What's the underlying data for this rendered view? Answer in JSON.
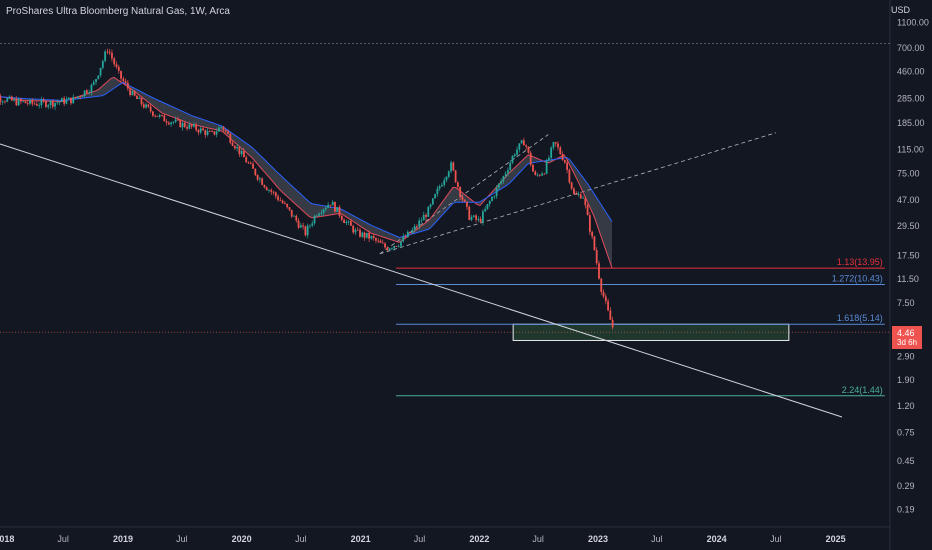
{
  "chart_title": "ProShares Ultra Bloomberg Natural Gas, 1W, Arca",
  "currency": "USD",
  "last_price": "4.46",
  "countdown": "3d 6h",
  "colors": {
    "background": "#131722",
    "up": "#26a69a",
    "down": "#ef5350",
    "ema_fast": "#e04b5a",
    "ema_slow": "#2962ff",
    "trendline": "#d1d4dc"
  },
  "chart_data": {
    "type": "candlestick",
    "y_scale": "log",
    "y_axis_ticks": [
      "1100.00",
      "700.00",
      "460.00",
      "285.00",
      "185.00",
      "115.00",
      "75.00",
      "47.00",
      "29.50",
      "17.50",
      "11.50",
      "7.50",
      "4.46",
      "2.90",
      "1.90",
      "1.20",
      "0.75",
      "0.45",
      "0.29",
      "0.19"
    ],
    "x_axis_ticks": [
      {
        "label": "2018",
        "year": true
      },
      {
        "label": "Jul",
        "year": false
      },
      {
        "label": "2019",
        "year": true
      },
      {
        "label": "Jul",
        "year": false
      },
      {
        "label": "2020",
        "year": true
      },
      {
        "label": "Jul",
        "year": false
      },
      {
        "label": "2021",
        "year": true
      },
      {
        "label": "Jul",
        "year": false
      },
      {
        "label": "2022",
        "year": true
      },
      {
        "label": "Jul",
        "year": false
      },
      {
        "label": "2023",
        "year": true
      },
      {
        "label": "Jul",
        "year": false
      },
      {
        "label": "2024",
        "year": true
      },
      {
        "label": "Jul",
        "year": false
      },
      {
        "label": "2025",
        "year": true
      }
    ],
    "fib_levels": [
      {
        "label": "1.13(13.95)",
        "value": 13.95,
        "color": "#e8323c"
      },
      {
        "label": "1.272(10.43)",
        "value": 10.43,
        "color": "#5b8bd6"
      },
      {
        "label": "1.618(5.14)",
        "value": 5.14,
        "color": "#5b8bd6"
      },
      {
        "label": "2.24(1.44)",
        "value": 1.44,
        "color": "#4caf9a"
      }
    ],
    "highlight_zone": {
      "low": 3.85,
      "high": 5.14
    },
    "price_path": [
      [
        "2017-11-01",
        320
      ],
      [
        "2017-12-15",
        290
      ],
      [
        "2018-02-01",
        270
      ],
      [
        "2018-04-01",
        260
      ],
      [
        "2018-06-01",
        265
      ],
      [
        "2018-08-01",
        280
      ],
      [
        "2018-10-01",
        360
      ],
      [
        "2018-11-15",
        700
      ],
      [
        "2018-12-20",
        430
      ],
      [
        "2019-02-01",
        300
      ],
      [
        "2019-03-15",
        240
      ],
      [
        "2019-05-01",
        200
      ],
      [
        "2019-07-01",
        180
      ],
      [
        "2019-08-20",
        165
      ],
      [
        "2019-10-01",
        150
      ],
      [
        "2019-11-01",
        175
      ],
      [
        "2019-12-01",
        135
      ],
      [
        "2020-01-01",
        105
      ],
      [
        "2020-02-01",
        82
      ],
      [
        "2020-03-15",
        60
      ],
      [
        "2020-05-01",
        46
      ],
      [
        "2020-06-15",
        33
      ],
      [
        "2020-07-15",
        26
      ],
      [
        "2020-08-20",
        38
      ],
      [
        "2020-10-01",
        45
      ],
      [
        "2020-11-15",
        32
      ],
      [
        "2020-12-20",
        26
      ],
      [
        "2021-02-01",
        24
      ],
      [
        "2021-03-20",
        20
      ],
      [
        "2021-05-01",
        22
      ],
      [
        "2021-06-15",
        28
      ],
      [
        "2021-08-01",
        40
      ],
      [
        "2021-09-01",
        60
      ],
      [
        "2021-10-05",
        88
      ],
      [
        "2021-11-01",
        55
      ],
      [
        "2021-12-01",
        35
      ],
      [
        "2022-01-01",
        32
      ],
      [
        "2022-02-01",
        45
      ],
      [
        "2022-03-15",
        70
      ],
      [
        "2022-04-20",
        110
      ],
      [
        "2022-05-20",
        135
      ],
      [
        "2022-06-20",
        70
      ],
      [
        "2022-07-20",
        80
      ],
      [
        "2022-08-20",
        130
      ],
      [
        "2022-09-20",
        95
      ],
      [
        "2022-10-20",
        50
      ],
      [
        "2022-11-15",
        52
      ],
      [
        "2022-12-01",
        33
      ],
      [
        "2022-12-20",
        20
      ],
      [
        "2023-01-10",
        10
      ],
      [
        "2023-02-01",
        6.3
      ],
      [
        "2023-02-20",
        4.46
      ]
    ],
    "ema_fast_path": [
      [
        "2017-11-01",
        310
      ],
      [
        "2018-03-01",
        275
      ],
      [
        "2018-07-01",
        270
      ],
      [
        "2018-10-15",
        330
      ],
      [
        "2018-12-01",
        420
      ],
      [
        "2019-02-01",
        330
      ],
      [
        "2019-05-01",
        220
      ],
      [
        "2019-08-01",
        180
      ],
      [
        "2019-11-01",
        160
      ],
      [
        "2020-02-01",
        100
      ],
      [
        "2020-05-01",
        55
      ],
      [
        "2020-08-01",
        34
      ],
      [
        "2020-11-01",
        37
      ],
      [
        "2021-02-01",
        26
      ],
      [
        "2021-05-01",
        22
      ],
      [
        "2021-08-01",
        33
      ],
      [
        "2021-10-15",
        60
      ],
      [
        "2022-01-01",
        42
      ],
      [
        "2022-04-01",
        75
      ],
      [
        "2022-06-01",
        105
      ],
      [
        "2022-08-01",
        90
      ],
      [
        "2022-09-20",
        105
      ],
      [
        "2022-11-01",
        65
      ],
      [
        "2022-12-20",
        35
      ],
      [
        "2023-02-20",
        12.5
      ]
    ],
    "ema_slow_path": [
      [
        "2017-11-01",
        300
      ],
      [
        "2018-03-01",
        285
      ],
      [
        "2018-07-01",
        275
      ],
      [
        "2018-11-01",
        300
      ],
      [
        "2019-01-01",
        380
      ],
      [
        "2019-04-01",
        290
      ],
      [
        "2019-08-01",
        210
      ],
      [
        "2019-11-01",
        175
      ],
      [
        "2020-02-01",
        120
      ],
      [
        "2020-05-01",
        72
      ],
      [
        "2020-08-01",
        44
      ],
      [
        "2020-11-01",
        40
      ],
      [
        "2021-02-01",
        30
      ],
      [
        "2021-05-01",
        24
      ],
      [
        "2021-08-01",
        28
      ],
      [
        "2021-10-15",
        45
      ],
      [
        "2022-01-01",
        45
      ],
      [
        "2022-04-01",
        62
      ],
      [
        "2022-06-01",
        90
      ],
      [
        "2022-08-01",
        95
      ],
      [
        "2022-10-01",
        100
      ],
      [
        "2022-12-01",
        62
      ],
      [
        "2023-02-20",
        30
      ]
    ]
  }
}
